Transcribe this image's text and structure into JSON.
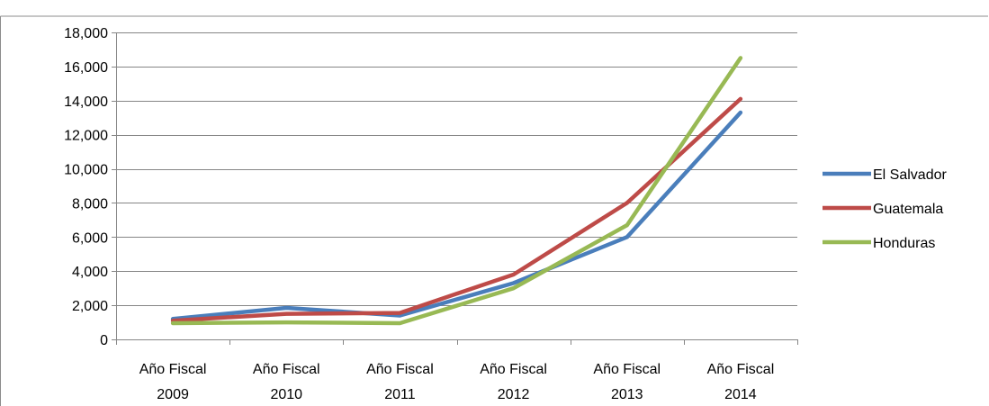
{
  "chart_data": {
    "type": "line",
    "title": "",
    "xlabel": "",
    "ylabel": "",
    "categories": [
      [
        "Año Fiscal",
        "2009"
      ],
      [
        "Año Fiscal",
        "2010"
      ],
      [
        "Año Fiscal",
        "2011"
      ],
      [
        "Año Fiscal",
        "2012"
      ],
      [
        "Año Fiscal",
        "2013"
      ],
      [
        "Año Fiscal",
        "2014"
      ]
    ],
    "ylim": [
      0,
      18000
    ],
    "y_ticks": [
      "0",
      "2,000",
      "4,000",
      "6,000",
      "8,000",
      "10,000",
      "12,000",
      "14,000",
      "16,000",
      "18,000"
    ],
    "y_tick_values": [
      0,
      2000,
      4000,
      6000,
      8000,
      10000,
      12000,
      14000,
      16000,
      18000
    ],
    "grid": true,
    "legend_position": "right",
    "series": [
      {
        "name": "El Salvador",
        "color": "#4a7ebb",
        "values": [
          1200,
          1850,
          1400,
          3300,
          6000,
          13300
        ]
      },
      {
        "name": "Guatemala",
        "color": "#be4b48",
        "values": [
          1100,
          1500,
          1550,
          3800,
          8000,
          14100
        ]
      },
      {
        "name": "Honduras",
        "color": "#98b954",
        "values": [
          950,
          1000,
          950,
          3000,
          6700,
          16500
        ]
      }
    ]
  }
}
